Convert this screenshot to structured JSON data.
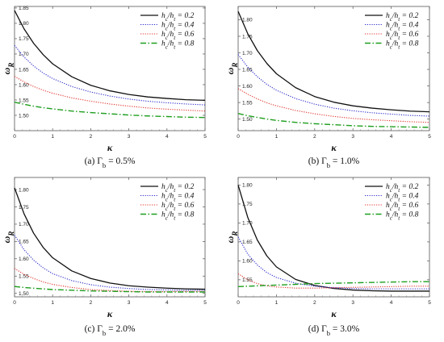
{
  "chart_data": [
    {
      "type": "line",
      "caption": "(a)  Γb = 0.5%",
      "xlabel": "κ",
      "ylabel": "ωR",
      "xlim": [
        0,
        5
      ],
      "ylim": [
        1.45,
        1.855
      ],
      "xticks": [
        0,
        1,
        2,
        3,
        4,
        5
      ],
      "yticks": [
        1.5,
        1.55,
        1.6,
        1.65,
        1.7,
        1.75,
        1.8,
        1.85
      ],
      "ytick_labels": [
        "1.50",
        "1.55",
        "1.60",
        "1.65",
        "1.70",
        "1.75",
        "1.80",
        "1.85"
      ],
      "legend_position": "top-right",
      "grid": false,
      "series": [
        {
          "name": "hc/ht = 0.2",
          "color": "#111111",
          "style": "solid",
          "x": [
            0,
            0.25,
            0.5,
            0.75,
            1,
            1.5,
            2,
            2.5,
            3,
            3.5,
            4,
            4.5,
            5
          ],
          "y": [
            1.842,
            1.782,
            1.735,
            1.698,
            1.668,
            1.626,
            1.598,
            1.58,
            1.568,
            1.56,
            1.555,
            1.551,
            1.549
          ]
        },
        {
          "name": "hc/ht = 0.4",
          "color": "#2b2bcc",
          "style": "dotted",
          "x": [
            0,
            0.25,
            0.5,
            0.75,
            1,
            1.5,
            2,
            2.5,
            3,
            3.5,
            4,
            4.5,
            5
          ],
          "y": [
            1.728,
            1.69,
            1.661,
            1.638,
            1.62,
            1.594,
            1.576,
            1.563,
            1.553,
            1.546,
            1.541,
            1.537,
            1.534
          ]
        },
        {
          "name": "hc/ht = 0.6",
          "color": "#e0332b",
          "style": "dotted",
          "x": [
            0,
            0.25,
            0.5,
            0.75,
            1,
            1.5,
            2,
            2.5,
            3,
            3.5,
            4,
            4.5,
            5
          ],
          "y": [
            1.627,
            1.609,
            1.594,
            1.582,
            1.572,
            1.557,
            1.546,
            1.537,
            1.53,
            1.524,
            1.52,
            1.517,
            1.514
          ]
        },
        {
          "name": "hc/ht = 0.8",
          "color": "#1e9e1e",
          "style": "dashdot",
          "x": [
            0,
            0.25,
            0.5,
            0.75,
            1,
            1.5,
            2,
            2.5,
            3,
            3.5,
            4,
            4.5,
            5
          ],
          "y": [
            1.543,
            1.536,
            1.53,
            1.525,
            1.521,
            1.514,
            1.509,
            1.505,
            1.501,
            1.498,
            1.496,
            1.494,
            1.493
          ]
        }
      ]
    },
    {
      "type": "line",
      "caption": "(b)  Γb = 1.0%",
      "xlabel": "κ",
      "ylabel": "ωR",
      "xlim": [
        0,
        5
      ],
      "ylim": [
        1.465,
        1.84
      ],
      "xticks": [
        0,
        1,
        2,
        3,
        4,
        5
      ],
      "yticks": [
        1.5,
        1.55,
        1.6,
        1.65,
        1.7,
        1.75,
        1.8
      ],
      "ytick_labels": [
        "1.50",
        "1.55",
        "1.60",
        "1.65",
        "1.70",
        "1.75",
        "1.80"
      ],
      "legend_position": "top-right",
      "grid": false,
      "series": [
        {
          "name": "hc/ht = 0.2",
          "color": "#111111",
          "style": "solid",
          "x": [
            0,
            0.25,
            0.5,
            0.75,
            1,
            1.5,
            2,
            2.5,
            3,
            3.5,
            4,
            4.5,
            5
          ],
          "y": [
            1.825,
            1.758,
            1.707,
            1.668,
            1.637,
            1.595,
            1.568,
            1.551,
            1.54,
            1.533,
            1.528,
            1.524,
            1.522
          ]
        },
        {
          "name": "hc/ht = 0.4",
          "color": "#2b2bcc",
          "style": "dotted",
          "x": [
            0,
            0.25,
            0.5,
            0.75,
            1,
            1.5,
            2,
            2.5,
            3,
            3.5,
            4,
            4.5,
            5
          ],
          "y": [
            1.695,
            1.657,
            1.628,
            1.605,
            1.587,
            1.562,
            1.545,
            1.533,
            1.525,
            1.519,
            1.515,
            1.511,
            1.509
          ]
        },
        {
          "name": "hc/ht = 0.6",
          "color": "#e0332b",
          "style": "dotted",
          "x": [
            0,
            0.25,
            0.5,
            0.75,
            1,
            1.5,
            2,
            2.5,
            3,
            3.5,
            4,
            4.5,
            5
          ],
          "y": [
            1.592,
            1.575,
            1.561,
            1.549,
            1.54,
            1.526,
            1.516,
            1.508,
            1.502,
            1.498,
            1.495,
            1.492,
            1.49
          ]
        },
        {
          "name": "hc/ht = 0.8",
          "color": "#1e9e1e",
          "style": "dashdot",
          "x": [
            0,
            0.25,
            0.5,
            0.75,
            1,
            1.5,
            2,
            2.5,
            3,
            3.5,
            4,
            4.5,
            5
          ],
          "y": [
            1.517,
            1.51,
            1.505,
            1.5,
            1.496,
            1.49,
            1.486,
            1.483,
            1.48,
            1.478,
            1.477,
            1.476,
            1.475
          ]
        }
      ]
    },
    {
      "type": "line",
      "caption": "(c)  Γb = 2.0%",
      "xlabel": "κ",
      "ylabel": "ωR",
      "xlim": [
        0,
        5
      ],
      "ylim": [
        1.49,
        1.835
      ],
      "xticks": [
        0,
        1,
        2,
        3,
        4,
        5
      ],
      "yticks": [
        1.5,
        1.55,
        1.6,
        1.65,
        1.7,
        1.75,
        1.8
      ],
      "ytick_labels": [
        "1.50",
        "1.55",
        "1.60",
        "1.65",
        "1.70",
        "1.75",
        "1.80"
      ],
      "legend_position": "top-right",
      "grid": false,
      "series": [
        {
          "name": "hc/ht = 0.2",
          "color": "#111111",
          "style": "solid",
          "x": [
            0,
            0.25,
            0.5,
            0.75,
            1,
            1.5,
            2,
            2.5,
            3,
            3.5,
            4,
            4.5,
            5
          ],
          "y": [
            1.805,
            1.73,
            1.674,
            1.633,
            1.603,
            1.565,
            1.543,
            1.53,
            1.522,
            1.518,
            1.515,
            1.513,
            1.512
          ]
        },
        {
          "name": "hc/ht = 0.4",
          "color": "#2b2bcc",
          "style": "dotted",
          "x": [
            0,
            0.25,
            0.5,
            0.75,
            1,
            1.5,
            2,
            2.5,
            3,
            3.5,
            4,
            4.5,
            5
          ],
          "y": [
            1.668,
            1.626,
            1.596,
            1.574,
            1.557,
            1.537,
            1.525,
            1.518,
            1.514,
            1.511,
            1.51,
            1.509,
            1.509
          ]
        },
        {
          "name": "hc/ht = 0.6",
          "color": "#e0332b",
          "style": "dotted",
          "x": [
            0,
            0.25,
            0.5,
            0.75,
            1,
            1.5,
            2,
            2.5,
            3,
            3.5,
            4,
            4.5,
            5
          ],
          "y": [
            1.572,
            1.555,
            1.543,
            1.533,
            1.526,
            1.517,
            1.511,
            1.508,
            1.506,
            1.505,
            1.505,
            1.506,
            1.506
          ]
        },
        {
          "name": "hc/ht = 0.8",
          "color": "#1e9e1e",
          "style": "dashdot",
          "x": [
            0,
            0.25,
            0.5,
            0.75,
            1,
            1.5,
            2,
            2.5,
            3,
            3.5,
            4,
            4.5,
            5
          ],
          "y": [
            1.52,
            1.517,
            1.515,
            1.513,
            1.511,
            1.509,
            1.507,
            1.506,
            1.505,
            1.504,
            1.504,
            1.504,
            1.504
          ]
        }
      ]
    },
    {
      "type": "line",
      "caption": "(d)  Γb = 3.0%",
      "xlabel": "κ",
      "ylabel": "ωR",
      "xlim": [
        0,
        5
      ],
      "ylim": [
        1.505,
        1.82
      ],
      "xticks": [
        0,
        1,
        2,
        3,
        4,
        5
      ],
      "yticks": [
        1.55,
        1.6,
        1.65,
        1.7,
        1.75,
        1.8
      ],
      "ytick_labels": [
        "1.55",
        "1.60",
        "1.65",
        "1.70",
        "1.75",
        "1.80"
      ],
      "legend_position": "top-right",
      "grid": false,
      "series": [
        {
          "name": "hc/ht = 0.2",
          "color": "#111111",
          "style": "solid",
          "x": [
            0,
            0.25,
            0.5,
            0.75,
            1,
            1.5,
            2,
            2.5,
            3,
            3.5,
            4,
            4.5,
            5
          ],
          "y": [
            1.8,
            1.715,
            1.655,
            1.613,
            1.584,
            1.551,
            1.535,
            1.527,
            1.523,
            1.521,
            1.52,
            1.52,
            1.52
          ]
        },
        {
          "name": "hc/ht = 0.4",
          "color": "#2b2bcc",
          "style": "dotted",
          "x": [
            0,
            0.25,
            0.5,
            0.75,
            1,
            1.5,
            2,
            2.5,
            3,
            3.5,
            4,
            4.5,
            5
          ],
          "y": [
            1.663,
            1.618,
            1.589,
            1.569,
            1.556,
            1.541,
            1.533,
            1.529,
            1.527,
            1.526,
            1.526,
            1.526,
            1.526
          ]
        },
        {
          "name": "hc/ht = 0.6",
          "color": "#e0332b",
          "style": "dotted",
          "x": [
            0,
            0.25,
            0.5,
            0.75,
            1,
            1.5,
            2,
            2.5,
            3,
            3.5,
            4,
            4.5,
            5
          ],
          "y": [
            1.566,
            1.55,
            1.54,
            1.534,
            1.531,
            1.528,
            1.528,
            1.529,
            1.53,
            1.531,
            1.532,
            1.533,
            1.533
          ]
        },
        {
          "name": "hc/ht = 0.8",
          "color": "#1e9e1e",
          "style": "dashdot",
          "x": [
            0,
            0.25,
            0.5,
            0.75,
            1,
            1.5,
            2,
            2.5,
            3,
            3.5,
            4,
            4.5,
            5
          ],
          "y": [
            1.532,
            1.533,
            1.534,
            1.535,
            1.536,
            1.538,
            1.54,
            1.541,
            1.542,
            1.543,
            1.544,
            1.545,
            1.545
          ]
        }
      ]
    }
  ]
}
